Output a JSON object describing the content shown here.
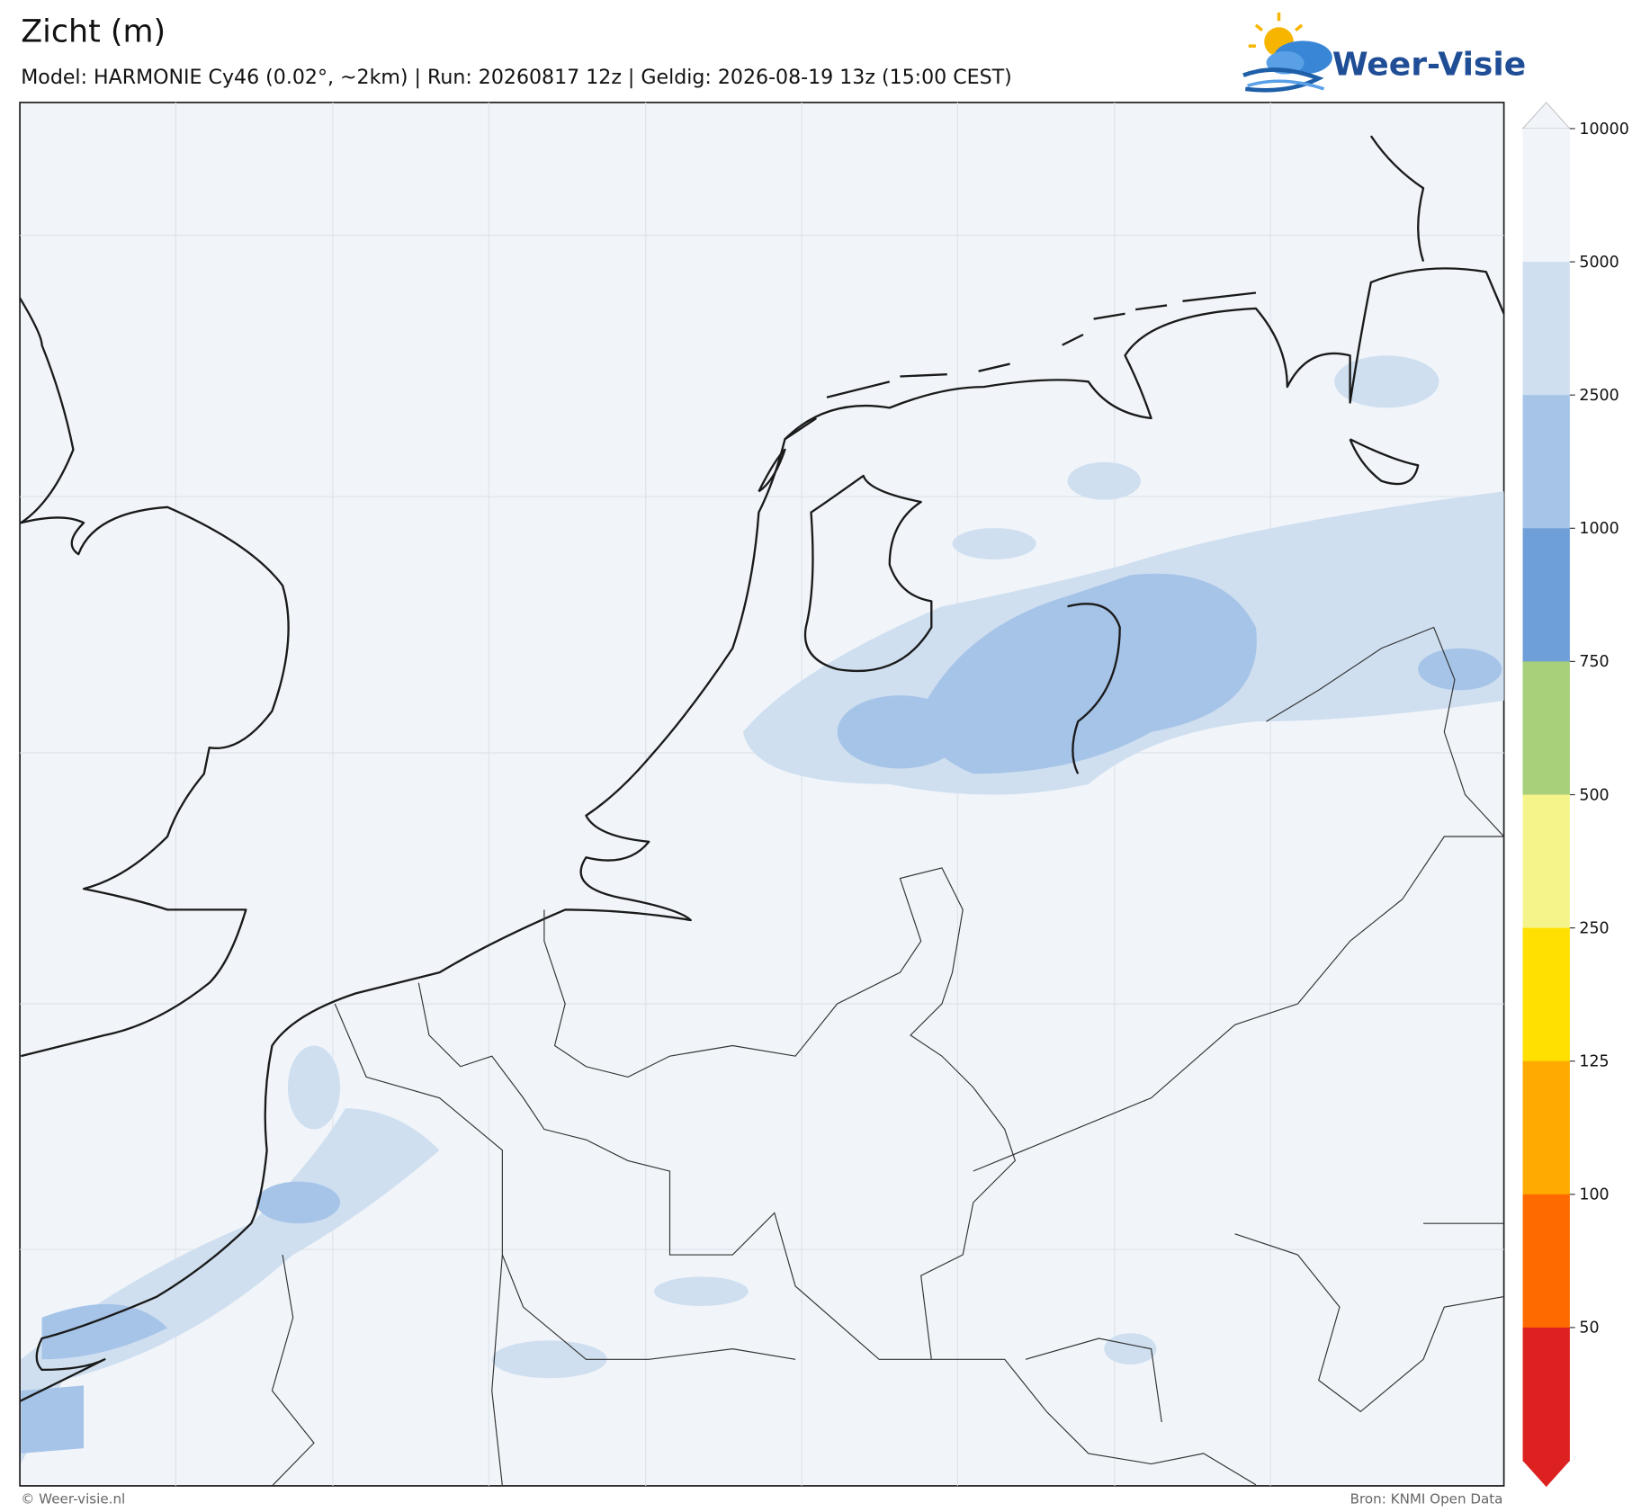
{
  "header": {
    "title": "Zicht (m)",
    "subtitle": "Model: HARMONIE Cy46 (0.02°, ~2km)  |  Run: 20260817 12z  |  Geldig: 2026-08-19 13z (15:00 CEST)"
  },
  "logo": {
    "text": "Weer-Visie"
  },
  "colorbar": {
    "ticks": [
      10000,
      5000,
      2500,
      1000,
      750,
      500,
      250,
      125,
      100,
      50
    ],
    "colors": [
      "#f1f5fa",
      "#cfdff0",
      "#a6c4e8",
      "#6f9fd8",
      "#a8cf7a",
      "#f4f48a",
      "#ffe000",
      "#ffaa00",
      "#ff6a00",
      "#dd2020"
    ]
  },
  "footer": {
    "left": "© Weer-visie.nl",
    "right": "Bron: KNMI Open Data"
  }
}
